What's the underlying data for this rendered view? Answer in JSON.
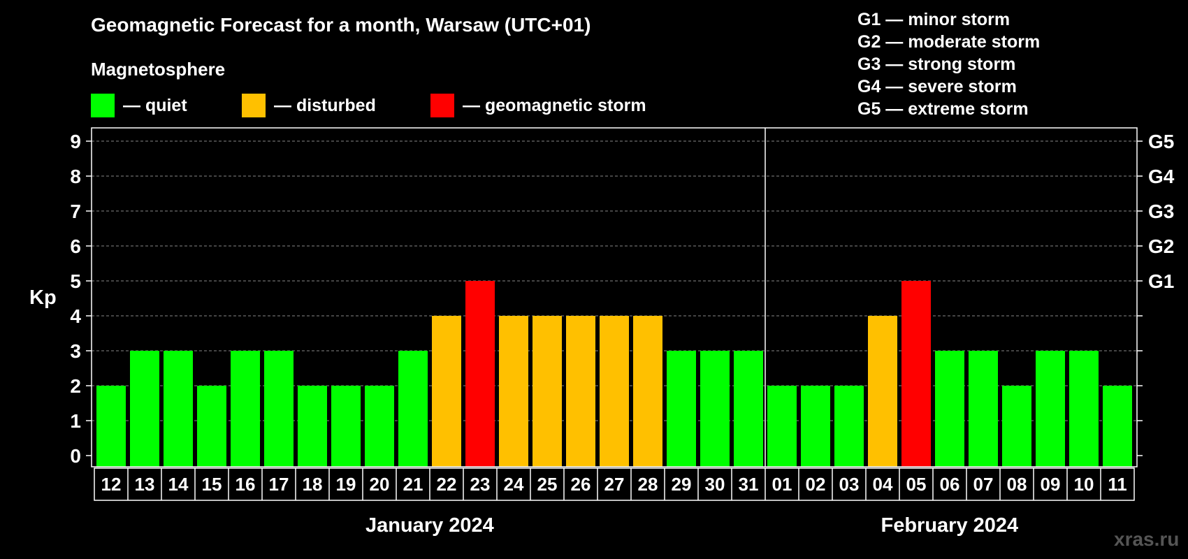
{
  "colors": {
    "quiet": "#00ff00",
    "disturbed": "#ffc000",
    "storm": "#ff0000",
    "grid": "#888888"
  },
  "legend": {
    "subtitle": "Magnetosphere",
    "items": [
      {
        "key": "quiet",
        "label": "— quiet"
      },
      {
        "key": "disturbed",
        "label": "— disturbed"
      },
      {
        "key": "storm",
        "label": "— geomagnetic storm"
      }
    ],
    "g_levels": [
      "G1 — minor storm",
      "G2 — moderate storm",
      "G3 — strong storm",
      "G4 — severe storm",
      "G5 — extreme storm"
    ]
  },
  "months": {
    "first": "January 2024",
    "second": "February 2024"
  },
  "watermark": "xras.ru",
  "chart_data": {
    "type": "bar",
    "title": "Geomagnetic Forecast for a month, Warsaw (UTC+01)",
    "ylabel": "Kp",
    "xlabel": "",
    "ylim": [
      0,
      9
    ],
    "yticks": [
      0,
      1,
      2,
      3,
      4,
      5,
      6,
      7,
      8,
      9
    ],
    "right_axis_labels": [
      {
        "kp": 5,
        "label": "G1"
      },
      {
        "kp": 6,
        "label": "G2"
      },
      {
        "kp": 7,
        "label": "G3"
      },
      {
        "kp": 8,
        "label": "G4"
      },
      {
        "kp": 9,
        "label": "G5"
      }
    ],
    "grid": true,
    "categories": [
      "12",
      "13",
      "14",
      "15",
      "16",
      "17",
      "18",
      "19",
      "20",
      "21",
      "22",
      "23",
      "24",
      "25",
      "26",
      "27",
      "28",
      "29",
      "30",
      "31",
      "01",
      "02",
      "03",
      "04",
      "05",
      "06",
      "07",
      "08",
      "09",
      "10",
      "11"
    ],
    "values": [
      2,
      3,
      3,
      2,
      3,
      3,
      2,
      2,
      2,
      3,
      4,
      5,
      4,
      4,
      4,
      4,
      4,
      3,
      3,
      3,
      2,
      2,
      2,
      4,
      5,
      3,
      3,
      2,
      3,
      3,
      2
    ],
    "month_split_index": 20
  }
}
